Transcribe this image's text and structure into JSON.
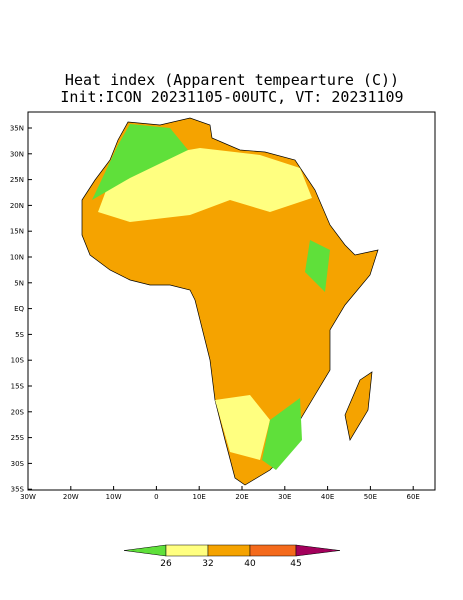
{
  "header": {
    "title": "Heat index (Apparent tempearture (C))",
    "subtitle": "Init:ICON 20231105-00UTC, VT: 20231109"
  },
  "map": {
    "lat_labels": [
      "35N",
      "30N",
      "25N",
      "20N",
      "15N",
      "10N",
      "5N",
      "EQ",
      "5S",
      "10S",
      "15S",
      "20S",
      "25S",
      "30S",
      "35S"
    ],
    "lon_labels": [
      "30W",
      "20W",
      "10W",
      "0",
      "10E",
      "20E",
      "30E",
      "40E",
      "50E",
      "60E"
    ]
  },
  "legend": {
    "colors": [
      "#5fe03a",
      "#ffff80",
      "#f5a300",
      "#f46a1c",
      "#a3005c"
    ],
    "labels": [
      "26",
      "32",
      "40",
      "45"
    ]
  }
}
